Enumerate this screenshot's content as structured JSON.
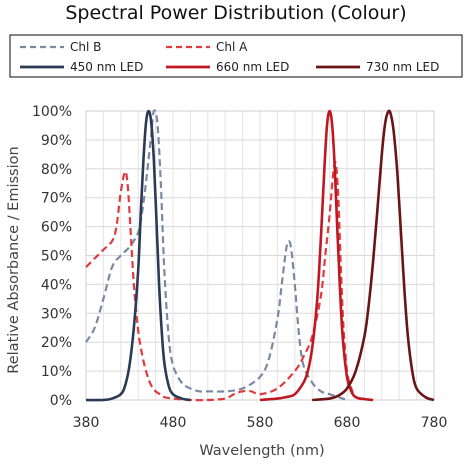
{
  "chart_data": {
    "type": "line",
    "title": "Spectral Power Distribution (Colour)",
    "xlabel": "Wavelength (nm)",
    "ylabel": "Relative Absorbance / Emission",
    "xlim": [
      380,
      780
    ],
    "ylim": [
      0,
      100
    ],
    "xticks": [
      380,
      480,
      580,
      680,
      780
    ],
    "yticks": [
      0,
      10,
      20,
      30,
      40,
      50,
      60,
      70,
      80,
      90,
      100
    ],
    "ytick_suffix": "%",
    "grid": true,
    "legend_position": "top",
    "series": [
      {
        "name": "Chl B",
        "style": "dashed",
        "color": "#7a8aa3",
        "x": [
          380,
          390,
          400,
          410,
          420,
          430,
          440,
          445,
          450,
          455,
          458,
          462,
          466,
          470,
          475,
          480,
          490,
          500,
          510,
          520,
          540,
          560,
          580,
          590,
          600,
          605,
          610,
          613,
          616,
          620,
          625,
          630,
          640,
          650,
          660,
          670,
          680
        ],
        "y": [
          20,
          25,
          35,
          46,
          50,
          53,
          58,
          66,
          78,
          92,
          100,
          96,
          75,
          45,
          22,
          12,
          6,
          4,
          3,
          3,
          3,
          4,
          8,
          14,
          28,
          40,
          52,
          55,
          52,
          40,
          22,
          12,
          6,
          3,
          2,
          1,
          0
        ]
      },
      {
        "name": "Chl A",
        "style": "dashed",
        "color": "#e0393e",
        "x": [
          380,
          390,
          400,
          410,
          415,
          420,
          425,
          428,
          431,
          435,
          440,
          445,
          450,
          455,
          460,
          465,
          470,
          480,
          500,
          520,
          540,
          550,
          560,
          570,
          580,
          600,
          620,
          630,
          640,
          650,
          655,
          660,
          664,
          667,
          670,
          673,
          676,
          680,
          685,
          690,
          700
        ],
        "y": [
          46,
          49,
          52,
          55,
          60,
          72,
          79,
          74,
          60,
          40,
          24,
          15,
          9,
          5,
          3,
          2,
          1,
          0.5,
          0,
          0,
          0.5,
          2,
          3,
          3,
          2,
          4,
          10,
          15,
          22,
          36,
          50,
          64,
          78,
          82,
          70,
          45,
          25,
          10,
          4,
          1,
          0
        ]
      },
      {
        "name": "450 nm LED",
        "style": "solid",
        "color": "#2b3a55",
        "x": [
          380,
          400,
          410,
          420,
          425,
          430,
          435,
          440,
          443,
          446,
          449,
          452,
          455,
          458,
          461,
          464,
          467,
          470,
          475,
          480,
          490,
          500
        ],
        "y": [
          0,
          0,
          0.5,
          2,
          5,
          12,
          25,
          45,
          65,
          83,
          96,
          100,
          96,
          83,
          62,
          40,
          24,
          13,
          5,
          2,
          0.5,
          0
        ]
      },
      {
        "name": "660 nm LED",
        "style": "solid",
        "color": "#c01822",
        "x": [
          580,
          600,
          610,
          620,
          630,
          635,
          640,
          645,
          648,
          651,
          654,
          657,
          660,
          663,
          666,
          669,
          672,
          675,
          680,
          685,
          690,
          700,
          710
        ],
        "y": [
          0,
          0.5,
          1,
          2,
          6,
          10,
          18,
          32,
          45,
          62,
          80,
          95,
          100,
          95,
          80,
          58,
          38,
          22,
          8,
          3,
          1,
          0.3,
          0
        ]
      },
      {
        "name": "730 nm LED",
        "style": "solid",
        "color": "#6b1416",
        "x": [
          640,
          660,
          670,
          680,
          690,
          700,
          705,
          710,
          715,
          720,
          724,
          728,
          731,
          734,
          738,
          742,
          746,
          750,
          755,
          760,
          770,
          780
        ],
        "y": [
          0,
          0.5,
          1.5,
          4,
          10,
          22,
          33,
          48,
          66,
          85,
          96,
          100,
          98,
          92,
          78,
          58,
          38,
          22,
          10,
          4,
          1,
          0
        ]
      }
    ]
  }
}
